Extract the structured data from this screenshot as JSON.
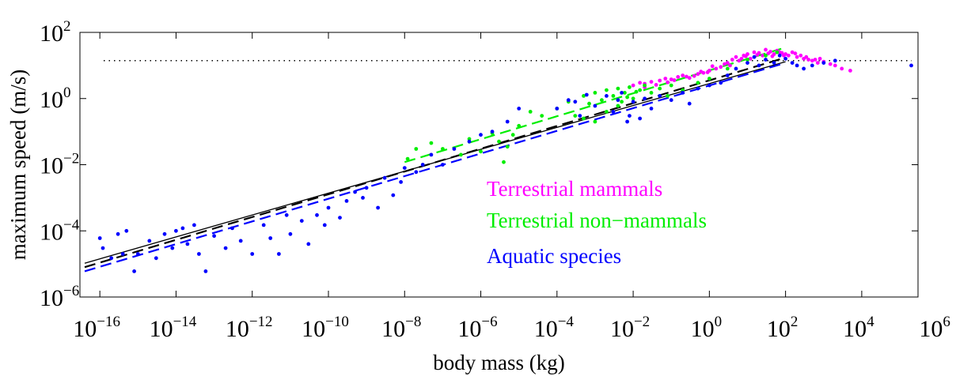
{
  "chart_data": {
    "type": "scatter",
    "x_scale": "log",
    "y_scale": "log",
    "xlabel": "body mass (kg)",
    "ylabel": "maximum speed (m/s)",
    "xlim": [
      3e-17,
      300000.0
    ],
    "ylim": [
      1e-06,
      100
    ],
    "x_ticks": [
      {
        "base": "10",
        "exp": "−16",
        "value": 1e-16
      },
      {
        "base": "10",
        "exp": "−14",
        "value": 1e-14
      },
      {
        "base": "10",
        "exp": "−12",
        "value": 1e-12
      },
      {
        "base": "10",
        "exp": "−10",
        "value": 1e-10
      },
      {
        "base": "10",
        "exp": "−8",
        "value": 1e-08
      },
      {
        "base": "10",
        "exp": "−6",
        "value": 1e-06
      },
      {
        "base": "10",
        "exp": "−4",
        "value": 0.0001
      },
      {
        "base": "10",
        "exp": "−2",
        "value": 0.01
      },
      {
        "base": "10",
        "exp": "0",
        "value": 1
      },
      {
        "base": "10",
        "exp": "2",
        "value": 100
      },
      {
        "base": "10",
        "exp": "4",
        "value": 10000.0
      },
      {
        "base": "10",
        "exp": "6",
        "value": 1000000.0
      }
    ],
    "y_ticks": [
      {
        "base": "10",
        "exp": "−6",
        "value": 1e-06
      },
      {
        "base": "10",
        "exp": "−4",
        "value": 0.0001
      },
      {
        "base": "10",
        "exp": "−2",
        "value": 0.01
      },
      {
        "base": "10",
        "exp": "0",
        "value": 1
      },
      {
        "base": "10",
        "exp": "2",
        "value": 100
      }
    ],
    "legend": [
      {
        "label": "Terrestrial mammals",
        "color": "#ff00ff"
      },
      {
        "label": "Terrestrial non−mammals",
        "color": "#00ee00"
      },
      {
        "label": "Aquatic species",
        "color": "#0000ff"
      }
    ],
    "reference_line": {
      "y": 14,
      "style": "dotted",
      "color": "#000000"
    },
    "fits": [
      {
        "color": "#000000",
        "style": "solid",
        "points": [
          [
            4e-17,
            1.05e-05
          ],
          [
            100,
            13
          ]
        ]
      },
      {
        "color": "#000000",
        "style": "dashed",
        "points": [
          [
            4e-17,
            8e-06
          ],
          [
            80,
            16
          ]
        ]
      },
      {
        "color": "#0000ff",
        "style": "dashed",
        "points": [
          [
            4e-17,
            6e-06
          ],
          [
            100,
            12
          ]
        ]
      },
      {
        "color": "#00ee00",
        "style": "dashed",
        "points": [
          [
            1e-08,
            0.012
          ],
          [
            100,
            35
          ]
        ]
      }
    ],
    "series": [
      {
        "name": "Terrestrial mammals",
        "color": "#ff00ff",
        "points": [
          [
            0.01,
            2.5
          ],
          [
            0.015,
            3.0
          ],
          [
            0.02,
            2.8
          ],
          [
            0.03,
            3.2
          ],
          [
            0.05,
            3.5
          ],
          [
            0.07,
            4.0
          ],
          [
            0.1,
            3.8
          ],
          [
            0.15,
            4.5
          ],
          [
            0.2,
            5.0
          ],
          [
            0.3,
            4.2
          ],
          [
            0.5,
            5.5
          ],
          [
            0.7,
            6.0
          ],
          [
            1,
            7.0
          ],
          [
            1.5,
            8.0
          ],
          [
            2,
            9.0
          ],
          [
            3,
            12
          ],
          [
            4,
            15
          ],
          [
            5,
            18
          ],
          [
            6,
            14
          ],
          [
            8,
            20
          ],
          [
            10,
            22
          ],
          [
            12,
            16
          ],
          [
            15,
            25
          ],
          [
            20,
            24
          ],
          [
            25,
            20
          ],
          [
            30,
            30
          ],
          [
            40,
            26
          ],
          [
            50,
            22
          ],
          [
            60,
            28
          ],
          [
            70,
            25
          ],
          [
            80,
            24
          ],
          [
            100,
            22
          ],
          [
            120,
            20
          ],
          [
            150,
            25
          ],
          [
            200,
            18
          ],
          [
            250,
            20
          ],
          [
            300,
            16
          ],
          [
            400,
            15
          ],
          [
            500,
            14
          ],
          [
            700,
            12
          ],
          [
            1000,
            13
          ],
          [
            1500,
            11
          ],
          [
            2000,
            10
          ],
          [
            3000,
            8
          ],
          [
            5000,
            7
          ],
          [
            0.02,
            2.2
          ],
          [
            0.04,
            2.6
          ],
          [
            0.08,
            3.1
          ],
          [
            0.12,
            3.6
          ],
          [
            0.25,
            4.6
          ],
          [
            0.4,
            4.8
          ],
          [
            0.6,
            6.5
          ],
          [
            0.9,
            6.2
          ],
          [
            1.2,
            9.5
          ],
          [
            2.5,
            11
          ],
          [
            3.5,
            10
          ],
          [
            7,
            16
          ],
          [
            9,
            19
          ],
          [
            18,
            21
          ],
          [
            35,
            23
          ],
          [
            45,
            19
          ],
          [
            90,
            20
          ],
          [
            180,
            23
          ],
          [
            350,
            18
          ],
          [
            600,
            15
          ],
          [
            800,
            16
          ]
        ]
      },
      {
        "name": "Terrestrial non-mammals",
        "color": "#00ee00",
        "points": [
          [
            1.2e-08,
            0.015
          ],
          [
            2e-08,
            0.03
          ],
          [
            5e-08,
            0.045
          ],
          [
            1e-07,
            0.03
          ],
          [
            3e-07,
            0.02
          ],
          [
            5e-07,
            0.06
          ],
          [
            1e-06,
            0.025
          ],
          [
            2e-06,
            0.09
          ],
          [
            3e-06,
            0.05
          ],
          [
            4e-06,
            0.012
          ],
          [
            5e-06,
            0.035
          ],
          [
            7e-06,
            0.08
          ],
          [
            1e-05,
            0.15
          ],
          [
            2e-05,
            0.4
          ],
          [
            4e-05,
            0.3
          ],
          [
            0.0001,
            0.5
          ],
          [
            0.0002,
            0.8
          ],
          [
            0.0003,
            0.3
          ],
          [
            0.0005,
            1.2
          ],
          [
            0.0007,
            0.7
          ],
          [
            0.001,
            1.5
          ],
          [
            0.0015,
            0.9
          ],
          [
            0.002,
            1.8
          ],
          [
            0.003,
            1.2
          ],
          [
            0.004,
            2.0
          ],
          [
            0.005,
            0.8
          ],
          [
            0.006,
            1.5
          ],
          [
            0.008,
            2.2
          ],
          [
            0.01,
            1.0
          ],
          [
            0.015,
            1.8
          ],
          [
            0.02,
            2.5
          ],
          [
            0.03,
            1.5
          ],
          [
            0.05,
            2.0
          ],
          [
            0.08,
            1.2
          ],
          [
            0.1,
            2.5
          ],
          [
            0.2,
            1.8
          ],
          [
            0.5,
            3.0
          ],
          [
            1,
            4.0
          ],
          [
            3,
            8
          ],
          [
            10,
            15
          ],
          [
            30,
            20
          ],
          [
            60,
            25
          ],
          [
            0.001,
            0.2
          ],
          [
            0.002,
            0.4
          ],
          [
            0.0005,
            0.25
          ],
          [
            0.004,
            0.6
          ],
          [
            0.007,
            1.1
          ],
          [
            0.012,
            1.6
          ]
        ]
      },
      {
        "name": "Aquatic species",
        "color": "#0000ff",
        "points": [
          [
            1e-16,
            6e-05
          ],
          [
            1.2e-16,
            3e-05
          ],
          [
            2e-16,
            1.5e-05
          ],
          [
            3e-16,
            8e-05
          ],
          [
            4e-16,
            2e-05
          ],
          [
            5e-16,
            0.0001
          ],
          [
            8e-16,
            6e-06
          ],
          [
            1e-15,
            2e-05
          ],
          [
            2e-15,
            5e-05
          ],
          [
            3e-15,
            1.5e-05
          ],
          [
            5e-15,
            8e-05
          ],
          [
            8e-15,
            3e-05
          ],
          [
            1e-14,
            0.0001
          ],
          [
            1.5e-14,
            0.00012
          ],
          [
            2e-14,
            4e-05
          ],
          [
            3e-14,
            0.00015
          ],
          [
            4e-14,
            2e-05
          ],
          [
            6e-14,
            6e-06
          ],
          [
            1e-13,
            7e-05
          ],
          [
            2e-13,
            3e-05
          ],
          [
            3e-13,
            0.00012
          ],
          [
            5e-13,
            5e-05
          ],
          [
            1e-12,
            2e-05
          ],
          [
            2e-12,
            0.00015
          ],
          [
            3e-12,
            6e-05
          ],
          [
            5e-12,
            2e-05
          ],
          [
            8e-12,
            0.0003
          ],
          [
            1e-11,
            8e-05
          ],
          [
            2e-11,
            0.0002
          ],
          [
            3e-11,
            4e-05
          ],
          [
            5e-11,
            0.0003
          ],
          [
            8e-11,
            0.00015
          ],
          [
            1e-10,
            0.0005
          ],
          [
            2e-10,
            0.00025
          ],
          [
            3e-10,
            0.0008
          ],
          [
            5e-10,
            0.0015
          ],
          [
            8e-10,
            0.001
          ],
          [
            1e-09,
            0.002
          ],
          [
            2e-09,
            0.0005
          ],
          [
            3e-09,
            0.004
          ],
          [
            5e-09,
            0.0012
          ],
          [
            8e-09,
            0.003
          ],
          [
            1e-08,
            0.008
          ],
          [
            2e-08,
            0.006
          ],
          [
            3e-08,
            0.01
          ],
          [
            5e-08,
            0.02
          ],
          [
            1e-07,
            0.01
          ],
          [
            2e-07,
            0.03
          ],
          [
            5e-07,
            0.05
          ],
          [
            1e-06,
            0.08
          ],
          [
            2e-06,
            0.1
          ],
          [
            5e-06,
            0.2
          ],
          [
            1e-05,
            0.5
          ],
          [
            0.0001,
            0.5
          ],
          [
            0.0003,
            0.8
          ],
          [
            0.001,
            0.6
          ],
          [
            0.002,
            1.2
          ],
          [
            0.003,
            0.4
          ],
          [
            0.005,
            1.5
          ],
          [
            0.008,
            0.3
          ],
          [
            0.01,
            0.8
          ],
          [
            0.02,
            1.0
          ],
          [
            0.03,
            0.5
          ],
          [
            0.05,
            1.2
          ],
          [
            0.1,
            0.9
          ],
          [
            0.2,
            1.5
          ],
          [
            0.3,
            0.7
          ],
          [
            0.5,
            2.0
          ],
          [
            1,
            2.5
          ],
          [
            2,
            3.0
          ],
          [
            3,
            5.0
          ],
          [
            5,
            8.0
          ],
          [
            10,
            12
          ],
          [
            15,
            18
          ],
          [
            20,
            10
          ],
          [
            30,
            15
          ],
          [
            50,
            12
          ],
          [
            70,
            20
          ],
          [
            100,
            16
          ],
          [
            150,
            12
          ],
          [
            200,
            10
          ],
          [
            300,
            8
          ],
          [
            500,
            10
          ],
          [
            1000,
            12
          ],
          [
            2000,
            14
          ],
          [
            200000.0,
            10
          ],
          [
            0.0002,
            0.9
          ],
          [
            0.0004,
            0.3
          ],
          [
            0.0006,
            1.3
          ],
          [
            0.004,
            0.9
          ],
          [
            0.007,
            0.2
          ],
          [
            0.015,
            0.25
          ]
        ]
      }
    ]
  }
}
